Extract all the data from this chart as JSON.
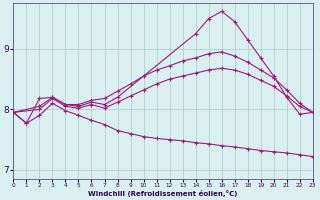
{
  "xlabel": "Windchill (Refroidissement éolien,°C)",
  "bg_color": "#daf0f0",
  "line_color": "#9b1a7a",
  "grid_color": "#aacccc",
  "axis_color": "#555577",
  "text_color": "#330055",
  "xlim": [
    0,
    23
  ],
  "ylim": [
    6.85,
    9.75
  ],
  "yticks": [
    7,
    8,
    9
  ],
  "xticks": [
    0,
    1,
    2,
    3,
    4,
    5,
    6,
    7,
    8,
    9,
    10,
    11,
    12,
    13,
    14,
    15,
    16,
    17,
    18,
    19,
    20,
    21,
    22,
    23
  ],
  "lines": [
    {
      "x": [
        0,
        1,
        2,
        3,
        4,
        5,
        6,
        7,
        8,
        14,
        15,
        16,
        17,
        18,
        19,
        20,
        21,
        22,
        23
      ],
      "y": [
        7.95,
        7.77,
        8.18,
        8.2,
        8.08,
        8.05,
        8.12,
        8.08,
        8.2,
        9.25,
        9.5,
        9.62,
        9.45,
        9.15,
        8.85,
        8.55,
        8.2,
        7.92,
        7.95
      ]
    },
    {
      "x": [
        0,
        2,
        3,
        4,
        5,
        6,
        7,
        8,
        9,
        10,
        11,
        12,
        13,
        14,
        15,
        16,
        17,
        18,
        19,
        20,
        21,
        22,
        23
      ],
      "y": [
        7.95,
        8.05,
        8.2,
        8.08,
        8.08,
        8.15,
        8.18,
        8.3,
        8.42,
        8.55,
        8.65,
        8.72,
        8.8,
        8.85,
        8.92,
        8.95,
        8.88,
        8.78,
        8.65,
        8.52,
        8.32,
        8.1,
        7.95
      ]
    },
    {
      "x": [
        0,
        2,
        3,
        4,
        5,
        6,
        7,
        8,
        9,
        10,
        11,
        12,
        13,
        14,
        15,
        16,
        17,
        18,
        19,
        20,
        21,
        22,
        23
      ],
      "y": [
        7.95,
        8.0,
        8.18,
        8.05,
        8.02,
        8.08,
        8.02,
        8.12,
        8.22,
        8.32,
        8.42,
        8.5,
        8.55,
        8.6,
        8.65,
        8.68,
        8.65,
        8.58,
        8.48,
        8.38,
        8.22,
        8.05,
        7.95
      ]
    },
    {
      "x": [
        0,
        1,
        2,
        3,
        4,
        5,
        6,
        7,
        8,
        9,
        10,
        11,
        12,
        13,
        14,
        15,
        16,
        17,
        18,
        19,
        20,
        21,
        22,
        23
      ],
      "y": [
        7.95,
        7.77,
        7.9,
        8.1,
        7.98,
        7.9,
        7.82,
        7.75,
        7.65,
        7.6,
        7.55,
        7.52,
        7.5,
        7.48,
        7.45,
        7.43,
        7.4,
        7.38,
        7.35,
        7.32,
        7.3,
        7.28,
        7.25,
        7.22
      ]
    }
  ]
}
